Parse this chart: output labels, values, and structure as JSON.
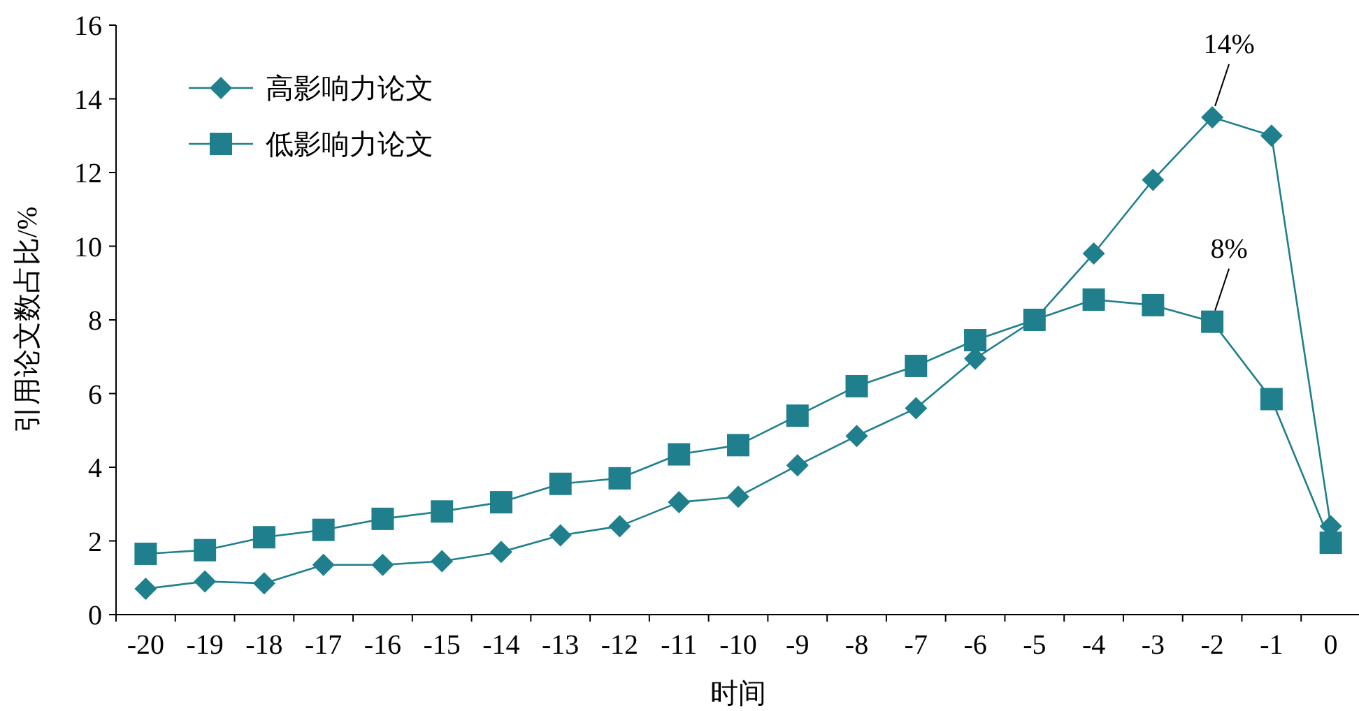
{
  "chart_data": {
    "type": "line",
    "xlabel": "时间",
    "ylabel": "引用论文数占比/%",
    "categories": [
      "-20",
      "-19",
      "-18",
      "-17",
      "-16",
      "-15",
      "-14",
      "-13",
      "-12",
      "-11",
      "-10",
      "-9",
      "-8",
      "-7",
      "-6",
      "-5",
      "-4",
      "-3",
      "-2",
      "-1",
      "0"
    ],
    "series": [
      {
        "name": "高影响力论文",
        "color": "#1f7f8c",
        "marker": "diamond",
        "values": [
          0.7,
          0.9,
          0.85,
          1.35,
          1.35,
          1.45,
          1.7,
          2.15,
          2.4,
          3.05,
          3.2,
          4.05,
          4.85,
          5.6,
          6.95,
          8.0,
          9.8,
          11.8,
          13.5,
          13.0,
          2.4
        ]
      },
      {
        "name": "低影响力论文",
        "color": "#1f7f8c",
        "marker": "square",
        "values": [
          1.65,
          1.75,
          2.1,
          2.3,
          2.6,
          2.8,
          3.05,
          3.55,
          3.7,
          4.35,
          4.6,
          5.4,
          6.2,
          6.75,
          7.45,
          8.0,
          8.55,
          8.4,
          7.95,
          5.85,
          1.95
        ]
      }
    ],
    "ylim": [
      0,
      16
    ],
    "yticks": [
      0,
      2,
      4,
      6,
      8,
      10,
      12,
      14,
      16
    ],
    "annotations": [
      {
        "text": "14%",
        "x": "-2",
        "y": 13.5
      },
      {
        "text": "8%",
        "x": "-2",
        "y": 7.95
      }
    ],
    "grid": false,
    "legend": "top left"
  }
}
